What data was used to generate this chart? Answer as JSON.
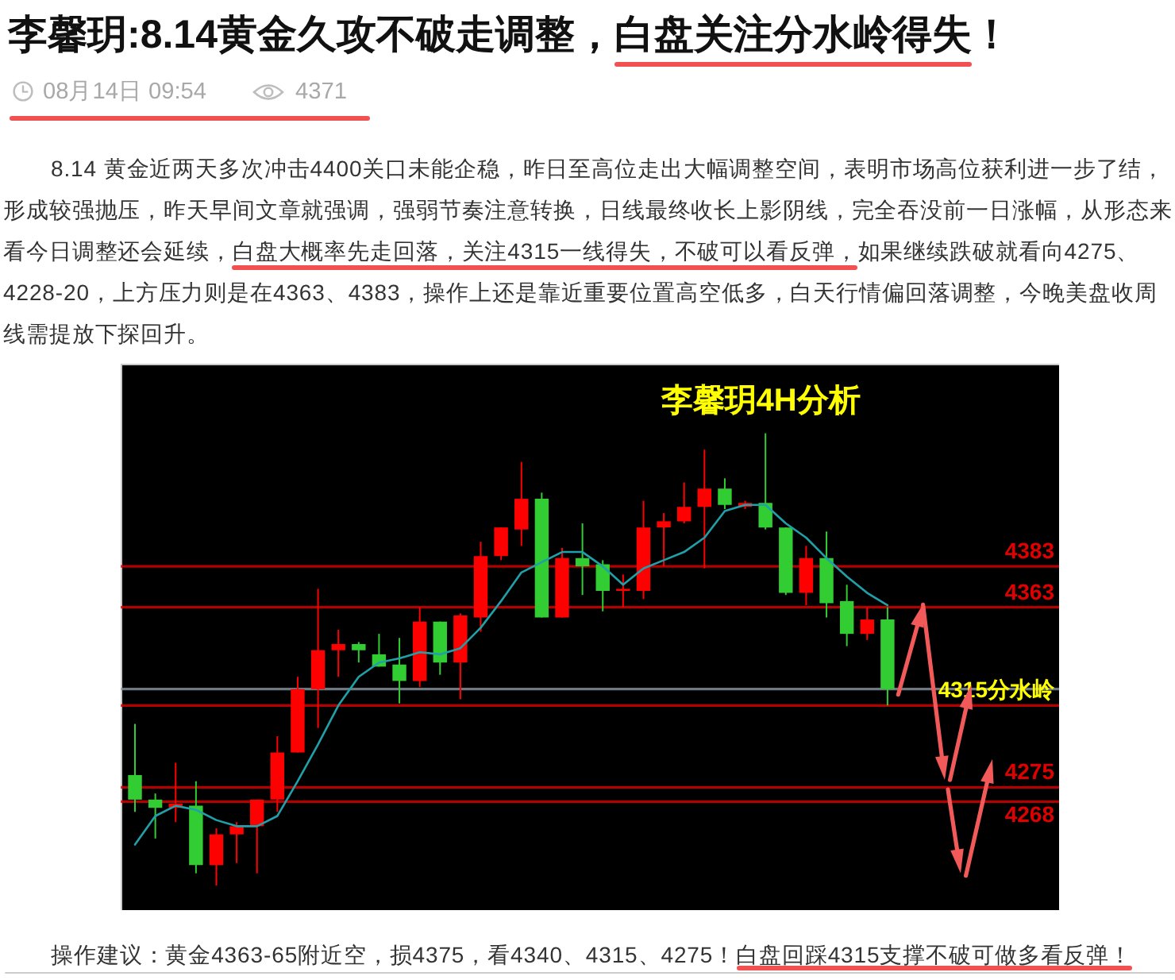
{
  "chart_data": {
    "type": "candlestick",
    "title": "李馨玥:8.14黄金久攻不破走调整，白盘关注分水岭得失！",
    "annotations": [
      "08月14日 09:54",
      "4371",
      "8.14 黄金近两天多次冲击4400关口未能企稳，昨日至高位走出大幅调整空间，表明市场高位获利进一步了结，形成较强抛压，昨天早间文章就强调，强弱节奏注意转换，日线最终收长上影阴线，完全吞没前一日涨幅，从形态来看今日调整还会延续，白盘大概率先走回落，关注4315一线得失，不破可以看反弹，如果继续跌破就看向4275、4228-20，上方压力则是在4363、4383，操作上还是靠近重要位置高空低多，白天行情偏回落调整，今晚美盘收周线需提放下探回升。",
      "李馨玥4H分析",
      {
        "text": "4315分水岭",
        "y": 4315
      },
      "操作建议：黄金4363-65附近空，损4375，看4340、4315、4275！白盘回踩4315支撑不破可做多看反弹！"
    ],
    "ylim": [
      4215,
      4482
    ],
    "tick_labels": false,
    "categories": [
      null,
      null,
      null,
      null,
      null,
      null,
      null,
      null,
      null,
      null,
      null,
      null,
      null,
      null,
      null,
      null,
      null,
      null,
      null,
      null,
      null,
      null,
      null,
      null,
      null,
      null,
      null,
      null,
      null,
      null,
      null,
      null,
      null,
      null,
      null,
      null,
      null,
      null
    ],
    "series": [
      {
        "type": "candlestick",
        "ohlc": [
          [
            4281,
            4306,
            4263,
            4269
          ],
          [
            4269,
            4272,
            4250,
            4265
          ],
          [
            4265,
            4287,
            4258,
            4267
          ],
          [
            4266,
            4278,
            4233,
            4237
          ],
          [
            4237,
            4255,
            4227,
            4252
          ],
          [
            4252,
            4258,
            4238,
            4256
          ],
          [
            4256,
            4269,
            4233,
            4269
          ],
          [
            4269,
            4300,
            4263,
            4292
          ],
          [
            4292,
            4329,
            4292,
            4323
          ],
          [
            4323,
            4372,
            4304,
            4342
          ],
          [
            4342,
            4352,
            4329,
            4345
          ],
          [
            4345,
            4346,
            4336,
            4342
          ],
          [
            4340,
            4350,
            4334,
            4334
          ],
          [
            4335,
            4348,
            4316,
            4327
          ],
          [
            4327,
            4363,
            4324,
            4356
          ],
          [
            4356,
            4356,
            4330,
            4336
          ],
          [
            4336,
            4360,
            4318,
            4359
          ],
          [
            4358,
            4395,
            4351,
            4388
          ],
          [
            4388,
            4402,
            4386,
            4402
          ],
          [
            4401,
            4434,
            4393,
            4416
          ],
          [
            4416,
            4419,
            4358,
            4358
          ],
          [
            4358,
            4392,
            4358,
            4387
          ],
          [
            4387,
            4404,
            4369,
            4383
          ],
          [
            4384,
            4386,
            4361,
            4371
          ],
          [
            4371,
            4379,
            4363,
            4372
          ],
          [
            4371,
            4415,
            4367,
            4402
          ],
          [
            4402,
            4409,
            4383,
            4405
          ],
          [
            4405,
            4424,
            4404,
            4412
          ],
          [
            4412,
            4440,
            4382,
            4421
          ],
          [
            4421,
            4426,
            4411,
            4413
          ],
          [
            4412,
            4415,
            4411,
            4414
          ],
          [
            4414,
            4448,
            4401,
            4402
          ],
          [
            4402,
            4402,
            4369,
            4370
          ],
          [
            4370,
            4393,
            4364,
            4387
          ],
          [
            4387,
            4400,
            4358,
            4365
          ],
          [
            4366,
            4374,
            4344,
            4350
          ],
          [
            4350,
            4363,
            4347,
            4357
          ],
          [
            4357,
            4363,
            4315,
            4323
          ]
        ],
        "colors": [
          "#32cd32",
          "#32cd32",
          "#ff0000",
          "#32cd32",
          "#ff0000",
          "#ff0000",
          "#ff0000",
          "#ff0000",
          "#ff0000",
          "#ff0000",
          "#ff0000",
          "#32cd32",
          "#32cd32",
          "#32cd32",
          "#ff0000",
          "#32cd32",
          "#ff0000",
          "#ff0000",
          "#ff0000",
          "#ff0000",
          "#32cd32",
          "#ff0000",
          "#32cd32",
          "#32cd32",
          "#ff0000",
          "#ff0000",
          "#ff0000",
          "#ff0000",
          "#ff0000",
          "#32cd32",
          "#ff0000",
          "#32cd32",
          "#32cd32",
          "#ff0000",
          "#32cd32",
          "#32cd32",
          "#ff0000",
          "#32cd32"
        ]
      },
      {
        "type": "line",
        "color": "#20a0a8",
        "values": [
          4247,
          4261,
          4266,
          4264,
          4259,
          4256,
          4256,
          4261,
          4278,
          4296,
          4315,
          4329,
          4336,
          4338,
          4341,
          4340,
          4343,
          4353,
          4366,
          4380,
          4385,
          4390,
          4390,
          4383,
          4374,
          4382,
          4386,
          4390,
          4397,
          4410,
          4413,
          4413,
          4404,
          4397,
          4387,
          4378,
          4370,
          4364
        ]
      }
    ],
    "ref_lines": [
      {
        "axis": "y",
        "value": 4383,
        "label": "4383",
        "color": "#e00000"
      },
      {
        "axis": "y",
        "value": 4363,
        "label": "4363",
        "color": "#e00000"
      },
      {
        "axis": "y",
        "value": 4323,
        "color": "#8a96a3"
      },
      {
        "axis": "y",
        "value": 4315,
        "color": "#e00000"
      },
      {
        "axis": "y",
        "value": 4275,
        "label": "4275",
        "color": "#e00000"
      },
      {
        "axis": "y",
        "value": 4268,
        "label": "4268",
        "color": "#e00000"
      }
    ]
  }
}
